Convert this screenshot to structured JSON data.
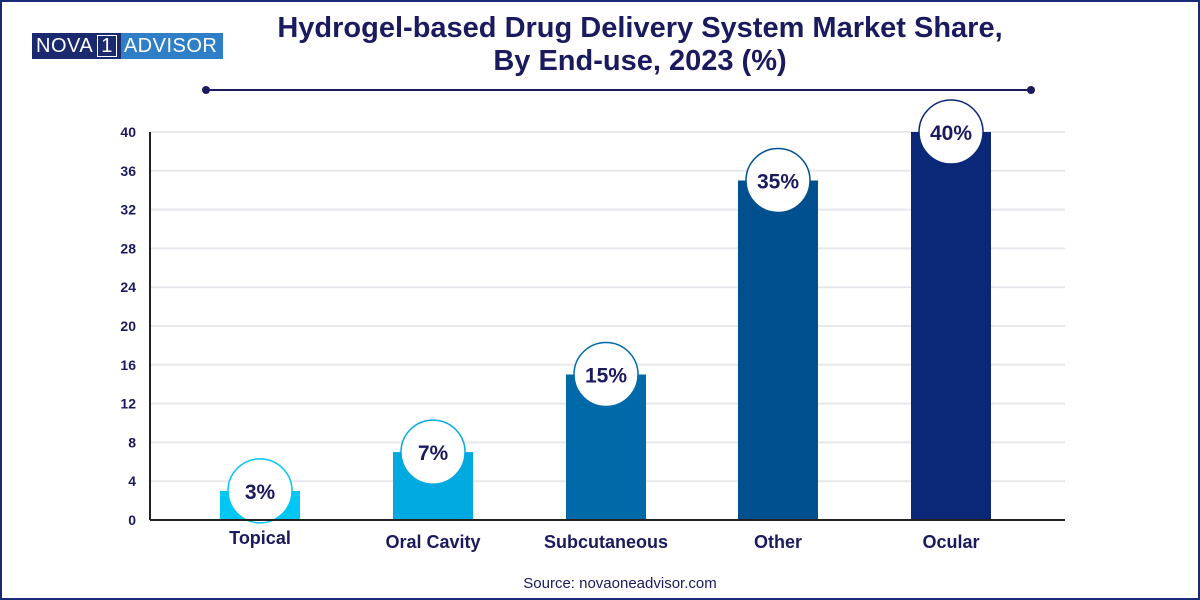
{
  "logo": {
    "left": "NOVA",
    "mid": "1",
    "right": "ADVISOR"
  },
  "source": "Source: novaoneadvisor.com",
  "chart_data": {
    "type": "bar",
    "title": "Hydrogel-based Drug Delivery System Market Share, By End-use, 2023 (%)",
    "title_lines": [
      "Hydrogel-based Drug Delivery System Market Share,",
      "By End-use, 2023 (%)"
    ],
    "categories": [
      "Topical",
      "Oral Cavity",
      "Subcutaneous",
      "Other",
      "Ocular"
    ],
    "values": [
      3,
      7,
      15,
      35,
      40
    ],
    "data_labels": [
      "3%",
      "7%",
      "15%",
      "35%",
      "40%"
    ],
    "colors": [
      "#00c6f4",
      "#00a9e0",
      "#0069a8",
      "#00508f",
      "#0b2878"
    ],
    "yticks": [
      0,
      4,
      8,
      12,
      16,
      20,
      24,
      28,
      32,
      36,
      40
    ],
    "ylim": [
      0,
      40
    ],
    "xlabel": "",
    "ylabel": "",
    "grid": true,
    "legend": "none"
  }
}
